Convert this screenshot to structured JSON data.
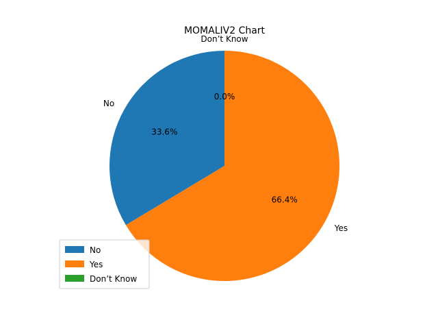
{
  "chart_data": {
    "type": "pie",
    "title": "MOMALIV2 Chart",
    "labels": [
      "No",
      "Yes",
      "Don’t Know"
    ],
    "values": [
      33.6,
      66.4,
      0.0
    ],
    "pct_labels": [
      "33.6%",
      "66.4%",
      "0.0%"
    ],
    "colors": [
      "#1f77b4",
      "#ff7f0e",
      "#2ca02c"
    ],
    "start_angle_deg": 90,
    "direction": "counterclockwise",
    "legend": {
      "position": "lower-left",
      "entries": [
        "No",
        "Yes",
        "Don’t Know"
      ]
    }
  }
}
